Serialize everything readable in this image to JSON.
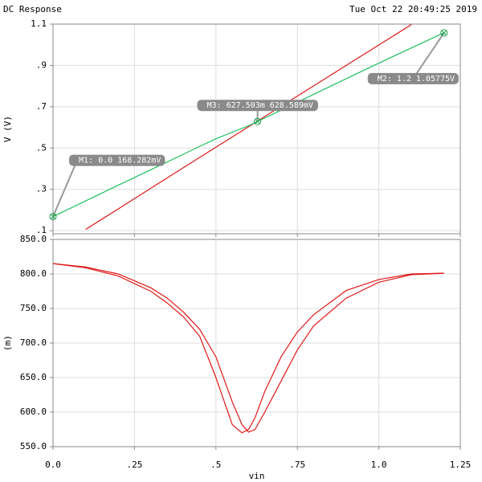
{
  "header": {
    "title": "DC Response",
    "timestamp": "Tue Oct 22 20:49:25 2019"
  },
  "chart_data": [
    {
      "type": "line",
      "ylabel": "V (V)",
      "xlim": [
        0,
        1.25
      ],
      "xticks": [
        0,
        0.25,
        0.5,
        0.75,
        1.0,
        1.25
      ],
      "ylim": [
        0.085,
        1.1
      ],
      "yticks": [
        {
          "value": 0.1,
          "label": ".1"
        },
        {
          "value": 0.3,
          "label": ".3"
        },
        {
          "value": 0.5,
          "label": ".5"
        },
        {
          "value": 0.7,
          "label": ".7"
        },
        {
          "value": 0.9,
          "label": ".9"
        },
        1.1
      ],
      "grid": true,
      "series": [
        {
          "color": "#e01818",
          "x": [
            0.1,
            0.2,
            0.3,
            0.4,
            0.5,
            0.6,
            0.7,
            0.8,
            0.9,
            1.0,
            1.1
          ],
          "values": [
            0.106,
            0.205,
            0.305,
            0.405,
            0.504,
            0.603,
            0.702,
            0.801,
            0.9,
            0.999,
            1.098
          ]
        },
        {
          "color": "#20c060",
          "x": [
            0,
            0.1,
            0.2,
            0.3,
            0.4,
            0.5,
            0.6,
            0.7,
            0.8,
            0.9,
            1.0,
            1.1,
            1.2
          ],
          "values": [
            0.168,
            0.244,
            0.32,
            0.395,
            0.47,
            0.545,
            0.608,
            0.683,
            0.76,
            0.836,
            0.911,
            0.985,
            1.058
          ]
        }
      ],
      "markers": [
        {
          "label": "M1: 0.0 168.282mV",
          "x": 0,
          "y": 0.168282
        },
        {
          "label": "M2: 1.2 1.05775V",
          "x": 1.2,
          "y": 1.05775
        },
        {
          "label": "M3: 627.503m 628.589mV",
          "x": 0.627503,
          "y": 0.628589
        }
      ]
    },
    {
      "type": "line",
      "ylabel": "(m)",
      "xlabel": "vin",
      "xlim": [
        0,
        1.25
      ],
      "xticks": [
        {
          "value": 0,
          "label": "0.0"
        },
        {
          "value": 0.25,
          "label": ".25"
        },
        {
          "value": 0.5,
          "label": ".5"
        },
        {
          "value": 0.75,
          "label": ".75"
        },
        {
          "value": 1.0,
          "label": "1.0"
        },
        1.25
      ],
      "ylim": [
        550,
        850
      ],
      "yticks": [
        {
          "value": 550,
          "label": "550.0"
        },
        {
          "value": 600,
          "label": "600.0"
        },
        {
          "value": 650,
          "label": "650.0"
        },
        {
          "value": 700,
          "label": "700.0"
        },
        {
          "value": 750,
          "label": "750.0"
        },
        {
          "value": 800,
          "label": "800.0"
        },
        {
          "value": 850,
          "label": "850.0"
        }
      ],
      "grid": true,
      "series": [
        {
          "color": "#e01818",
          "x": [
            0,
            0.1,
            0.2,
            0.3,
            0.35,
            0.4,
            0.45,
            0.5,
            0.55,
            0.58,
            0.6,
            0.62,
            0.65,
            0.7,
            0.75,
            0.8,
            0.9,
            1.0,
            1.1,
            1.2
          ],
          "values": [
            815,
            809,
            797,
            775,
            758,
            738,
            710,
            650,
            582,
            570,
            575,
            592,
            630,
            680,
            716,
            741,
            776,
            792,
            800,
            801
          ]
        },
        {
          "color": "#e01818",
          "x": [
            0,
            0.1,
            0.2,
            0.3,
            0.35,
            0.4,
            0.45,
            0.5,
            0.55,
            0.58,
            0.6,
            0.62,
            0.65,
            0.7,
            0.75,
            0.8,
            0.9,
            1.0,
            1.1,
            1.2
          ],
          "values": [
            815,
            810,
            800,
            780,
            765,
            745,
            720,
            680,
            615,
            582,
            571,
            575,
            600,
            645,
            690,
            725,
            765,
            788,
            799,
            801
          ]
        }
      ]
    }
  ]
}
